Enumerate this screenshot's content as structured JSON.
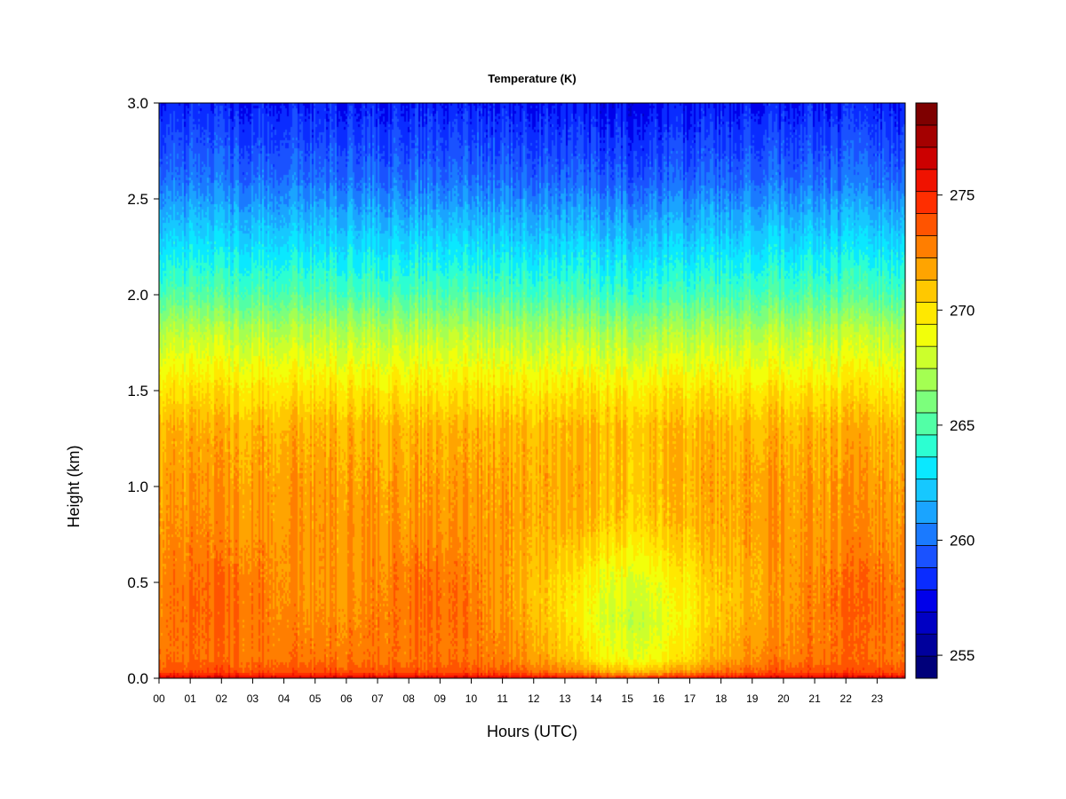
{
  "chart_data": {
    "type": "heatmap",
    "title": "Temperature (K)",
    "xlabel": "Hours (UTC)",
    "ylabel": "Height (km)",
    "x_ticks": [
      "00",
      "01",
      "02",
      "03",
      "04",
      "05",
      "06",
      "07",
      "08",
      "09",
      "10",
      "11",
      "12",
      "13",
      "14",
      "15",
      "16",
      "17",
      "18",
      "19",
      "20",
      "21",
      "22",
      "23"
    ],
    "x_range": [
      0,
      23.9
    ],
    "y_ticks": [
      "0.0",
      "0.5",
      "1.0",
      "1.5",
      "2.0",
      "2.5",
      "3.0"
    ],
    "y_range": [
      0,
      3.0
    ],
    "colorbar": {
      "ticks": [
        255,
        260,
        265,
        270,
        275
      ],
      "range": [
        254,
        279
      ],
      "levels": [
        "#00007a",
        "#00009c",
        "#0000c4",
        "#0000ea",
        "#0a2cff",
        "#1a52ff",
        "#1a7aff",
        "#1aa4ff",
        "#16c8ff",
        "#0ae8ff",
        "#2cffd2",
        "#52ffa6",
        "#7cff7c",
        "#a4ff52",
        "#ccff2c",
        "#f2ff0a",
        "#ffe800",
        "#ffc800",
        "#ffa400",
        "#ff7e00",
        "#ff5400",
        "#ff2e00",
        "#f01200",
        "#cc0000",
        "#a40000",
        "#7e0000"
      ]
    },
    "grid": false,
    "temperature_profile": {
      "heights_km": [
        0,
        0.03,
        0.1,
        0.3,
        0.5,
        0.8,
        1.0,
        1.3,
        1.5,
        1.8,
        2.0,
        2.3,
        2.6,
        3.0
      ],
      "night_K": [
        276.5,
        274.0,
        273.0,
        272.8,
        272.6,
        272.2,
        272.0,
        271.4,
        270.0,
        267.5,
        265.0,
        262.5,
        260.0,
        258.0
      ],
      "midday_K": [
        275.0,
        271.5,
        268.8,
        267.5,
        268.0,
        270.5,
        271.0,
        271.0,
        269.8,
        267.0,
        264.5,
        262.0,
        259.5,
        257.5
      ]
    }
  }
}
